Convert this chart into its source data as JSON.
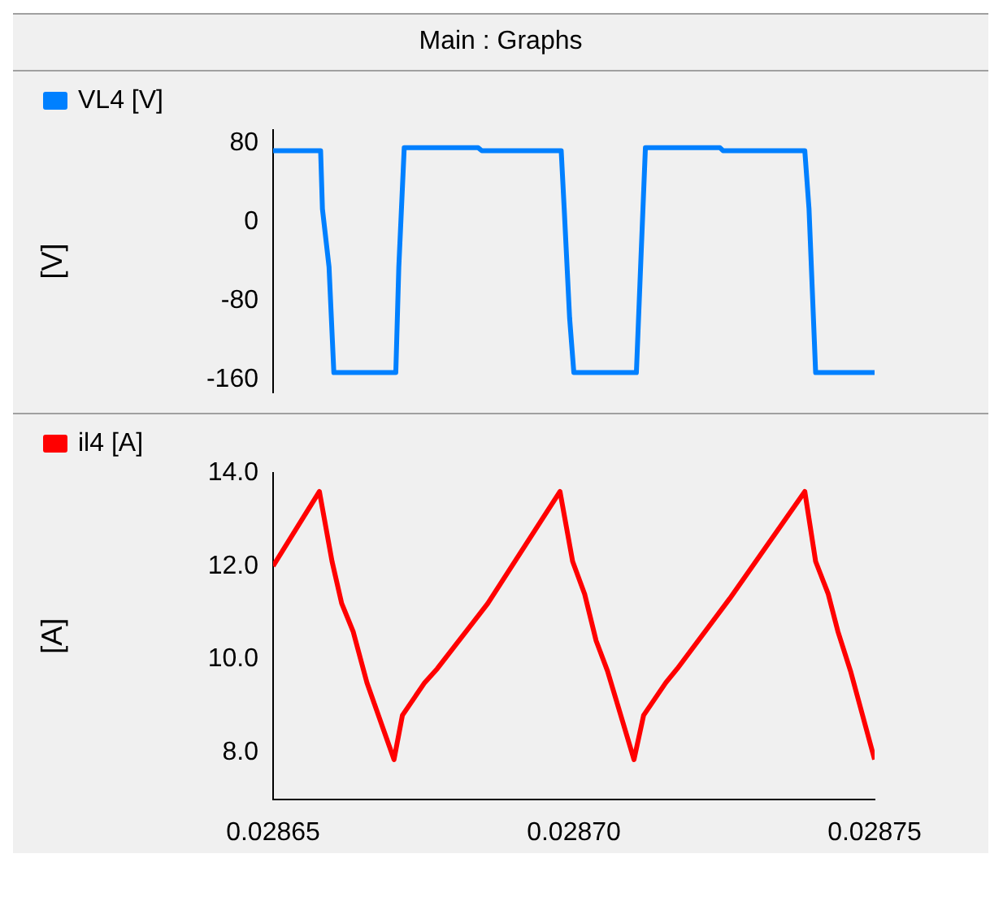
{
  "chart_data": [
    {
      "type": "line",
      "title": "Main : Graphs",
      "ylabel": "[V]",
      "legend": "top",
      "tick_labels": "y",
      "marker": "none",
      "line_style": "solid",
      "xlim": [
        0.02865,
        0.02875
      ],
      "ylim": [
        -173,
        93
      ],
      "yticks": [
        80,
        0,
        -80,
        -160
      ],
      "series": [
        {
          "name": "VL4 [V]",
          "color": "#0080ff",
          "x": [
            0.02865,
            0.0286579,
            0.0286582,
            0.0286593,
            0.0286601,
            0.0286704,
            0.0286709,
            0.0286718,
            0.0286841,
            0.0286847,
            0.0286979,
            0.0286984,
            0.0286993,
            0.0287,
            0.0287104,
            0.0287111,
            0.0287119,
            0.0287243,
            0.0287248,
            0.0287384,
            0.0287391,
            0.0287402,
            0.02875
          ],
          "values": [
            72,
            72,
            13,
            -46,
            -153,
            -153,
            -46,
            75,
            75,
            72,
            72,
            13,
            -98,
            -153,
            -153,
            -46,
            75,
            75,
            72,
            72,
            13,
            -153,
            -153
          ]
        }
      ]
    },
    {
      "type": "line",
      "ylabel": "[A]",
      "legend": "top",
      "marker": "none",
      "line_style": "solid",
      "xlim": [
        0.02865,
        0.02875
      ],
      "xticks": [
        0.02865,
        {
          "value": 0.0287,
          "label": "0.02870"
        },
        0.02875
      ],
      "ylim": [
        7.0,
        14.0
      ],
      "yticks": [
        {
          "value": 14,
          "label": "14.0"
        },
        {
          "value": 12,
          "label": "12.0"
        },
        {
          "value": 10,
          "label": "10.0"
        },
        {
          "value": 8,
          "label": "8.0"
        }
      ],
      "series": [
        {
          "name": "il4 [A]",
          "color": "#ff0000",
          "x": [
            0.02865,
            0.0286577,
            0.0286598,
            0.0286614,
            0.0286633,
            0.0286656,
            0.0286701,
            0.0286715,
            0.0286752,
            0.0286773,
            0.0286857,
            0.0286977,
            0.0286998,
            0.0287018,
            0.0287037,
            0.0287056,
            0.02871,
            0.0287116,
            0.0287153,
            0.0287172,
            0.0287259,
            0.0287384,
            0.0287402,
            0.0287423,
            0.0287439,
            0.028746,
            0.02875
          ],
          "values": [
            12.0,
            13.6,
            12.1,
            11.2,
            10.6,
            9.5,
            7.85,
            8.8,
            9.5,
            9.8,
            11.2,
            13.6,
            12.1,
            11.4,
            10.4,
            9.75,
            7.85,
            8.8,
            9.5,
            9.8,
            11.3,
            13.6,
            12.1,
            11.4,
            10.6,
            9.75,
            7.85
          ]
        }
      ]
    }
  ]
}
